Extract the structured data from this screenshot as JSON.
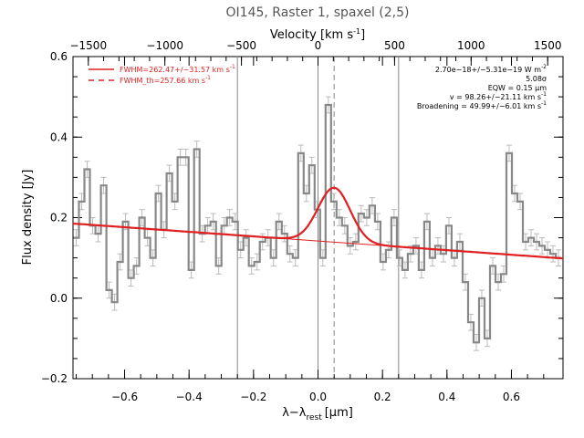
{
  "chart_data": {
    "type": "line",
    "title": "OI145, Raster 1, spaxel (2,5)",
    "xlabel": "λ−λ",
    "xlabel_sub": "rest",
    "xlabel_unit": "[μm]",
    "ylabel": "Flux density [Jy]",
    "top_axis_label": "Velocity [km s",
    "top_axis_label_sup": "-1",
    "top_axis_label_end": "]",
    "xlim": [
      -0.76,
      0.76
    ],
    "ylim": [
      -0.2,
      0.6
    ],
    "top_xlim": [
      -1600,
      1600
    ],
    "x_ticks": [
      -0.6,
      -0.4,
      -0.2,
      0.0,
      0.2,
      0.4,
      0.6
    ],
    "x_tick_labels": [
      "−0.6",
      "−0.4",
      "−0.2",
      "0.0",
      "0.2",
      "0.4",
      "0.6"
    ],
    "y_ticks": [
      -0.2,
      0.0,
      0.2,
      0.4,
      0.6
    ],
    "y_tick_labels": [
      "−0.2",
      "0.0",
      "0.2",
      "0.4",
      "0.6"
    ],
    "top_ticks": [
      -1500,
      -1000,
      -500,
      0,
      500,
      1000,
      1500
    ],
    "top_tick_labels": [
      "−1500",
      "−1000",
      "−500",
      "0",
      "500",
      "1000",
      "1500"
    ],
    "vertical_lines_solid": [
      -0.25,
      0.0,
      0.25
    ],
    "vertical_line_dashed": 0.05,
    "spectrum": {
      "color": "#888888",
      "x": [
        -0.75,
        -0.733,
        -0.716,
        -0.699,
        -0.682,
        -0.665,
        -0.648,
        -0.631,
        -0.614,
        -0.597,
        -0.58,
        -0.563,
        -0.546,
        -0.529,
        -0.512,
        -0.495,
        -0.478,
        -0.461,
        -0.444,
        -0.427,
        -0.41,
        -0.393,
        -0.376,
        -0.359,
        -0.342,
        -0.325,
        -0.308,
        -0.291,
        -0.274,
        -0.257,
        -0.24,
        -0.223,
        -0.206,
        -0.189,
        -0.172,
        -0.155,
        -0.138,
        -0.121,
        -0.104,
        -0.087,
        -0.07,
        -0.053,
        -0.036,
        -0.019,
        -0.002,
        0.015,
        0.032,
        0.049,
        0.066,
        0.083,
        0.1,
        0.117,
        0.134,
        0.151,
        0.168,
        0.185,
        0.202,
        0.219,
        0.236,
        0.253,
        0.27,
        0.287,
        0.304,
        0.321,
        0.338,
        0.355,
        0.372,
        0.389,
        0.406,
        0.423,
        0.44,
        0.457,
        0.474,
        0.491,
        0.508,
        0.525,
        0.542,
        0.559,
        0.576,
        0.593,
        0.61,
        0.627,
        0.644,
        0.661,
        0.678,
        0.695,
        0.712,
        0.729,
        0.746
      ],
      "y": [
        0.15,
        0.24,
        0.32,
        0.18,
        0.16,
        0.28,
        0.02,
        -0.01,
        0.09,
        0.19,
        0.05,
        0.08,
        0.2,
        0.15,
        0.1,
        0.26,
        0.17,
        0.31,
        0.24,
        0.35,
        0.35,
        0.07,
        0.37,
        0.16,
        0.18,
        0.19,
        0.08,
        0.18,
        0.2,
        0.19,
        0.12,
        0.15,
        0.08,
        0.09,
        0.14,
        0.15,
        0.1,
        0.19,
        0.16,
        0.11,
        0.1,
        0.36,
        0.26,
        0.33,
        0.22,
        0.1,
        0.48,
        0.24,
        0.2,
        0.18,
        0.13,
        0.14,
        0.21,
        0.2,
        0.23,
        0.19,
        0.09,
        0.12,
        0.2,
        0.1,
        0.07,
        0.11,
        0.13,
        0.07,
        0.19,
        0.1,
        0.13,
        0.11,
        0.18,
        0.1,
        0.14,
        0.04,
        -0.06,
        -0.11,
        0.0,
        -0.1,
        0.08,
        0.04,
        0.06,
        0.36,
        0.26,
        0.24,
        0.14,
        0.15,
        0.14,
        0.13,
        0.12,
        0.11,
        0.1
      ],
      "errors": [
        0.02,
        0.02,
        0.02,
        0.02,
        0.02,
        0.02,
        0.02,
        0.02,
        0.02,
        0.02,
        0.02,
        0.02,
        0.02,
        0.02,
        0.02,
        0.02,
        0.02,
        0.02,
        0.02,
        0.02,
        0.02,
        0.02,
        0.02,
        0.02,
        0.02,
        0.02,
        0.02,
        0.02,
        0.02,
        0.02,
        0.02,
        0.02,
        0.02,
        0.02,
        0.02,
        0.02,
        0.02,
        0.02,
        0.02,
        0.02,
        0.02,
        0.02,
        0.02,
        0.02,
        0.02,
        0.02,
        0.02,
        0.02,
        0.02,
        0.02,
        0.02,
        0.02,
        0.02,
        0.02,
        0.02,
        0.02,
        0.02,
        0.02,
        0.02,
        0.02,
        0.02,
        0.02,
        0.02,
        0.02,
        0.02,
        0.02,
        0.02,
        0.02,
        0.02,
        0.02,
        0.02,
        0.02,
        0.02,
        0.02,
        0.02,
        0.02,
        0.02,
        0.02,
        0.02,
        0.02,
        0.02,
        0.02,
        0.02,
        0.02,
        0.02,
        0.02,
        0.02,
        0.02,
        0.02
      ]
    },
    "continuum": {
      "color": "#e02020",
      "slope": -0.057,
      "intercept": 0.142
    },
    "fit": {
      "color": "#e02020",
      "center": 0.05,
      "sigma": 0.05,
      "amplitude": 0.135
    },
    "legend": {
      "placement": "top-left",
      "entries": [
        {
          "label": "FWHM=262.47+/−31.57 km s",
          "sup": "-1",
          "style": "solid",
          "color": "#e02020"
        },
        {
          "label": "FWHM_th=257.66 km s",
          "sup": "-1",
          "style": "dashed",
          "color": "#e02020"
        }
      ]
    },
    "annotations": [
      {
        "text": "2.70e−18+/−5.31e−19 W m",
        "sup": "-2"
      },
      {
        "text": "5.08σ",
        "sup": ""
      },
      {
        "text": "EQW = 0.15 μm",
        "sup": ""
      },
      {
        "text": "v = 98.26+/−21.11 km s",
        "sup": "-1"
      },
      {
        "text": "Broadening = 49.99+/−6.01 km s",
        "sup": "-1"
      }
    ]
  }
}
